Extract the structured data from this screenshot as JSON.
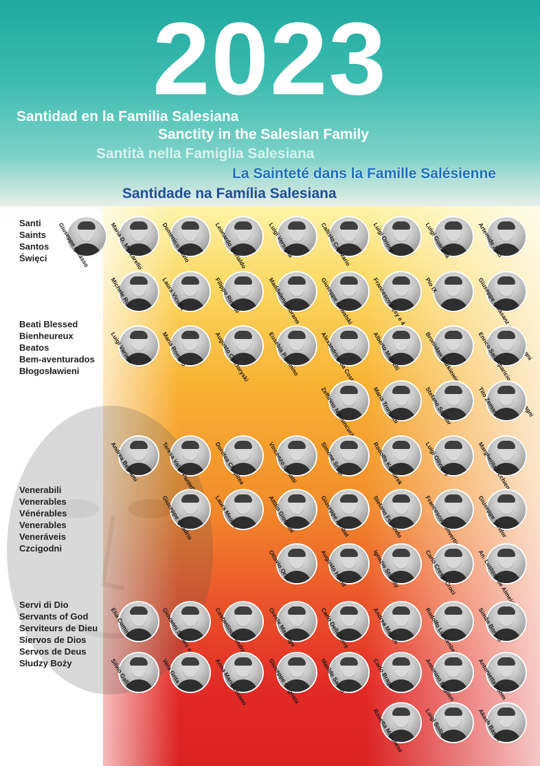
{
  "year": "2023",
  "titles": [
    "Santidad en la Familia Salesiana",
    "Sanctity in the Salesian Family",
    "Santità nella Famiglia Salesiana",
    "La Sainteté dans la Famille Salésienne",
    "Santidade na Família Salesiana"
  ],
  "sections": {
    "saints": [
      "Santi",
      "Saints",
      "Santos",
      "Święci"
    ],
    "blessed": [
      "Beati Blessed",
      "Bienheureux",
      "Beatos",
      "Bem-aventurados",
      "Błogosławieni"
    ],
    "venerable": [
      "Venerabili",
      "Venerables",
      "Vénérables",
      "Venerables",
      "Veneráveis",
      "Czcigodni"
    ],
    "servants": [
      "Servi di Dio",
      "Servants of God",
      "Serviteurs de Dieu",
      "Siervos de Dios",
      "Servos de Deus",
      "Słudzy Boży"
    ]
  },
  "people": [
    {
      "name": "Giuseppe Cafasso"
    },
    {
      "name": "Maria D. Mazzarello"
    },
    {
      "name": "Domenico Savio"
    },
    {
      "name": "Leonardo Murialdo"
    },
    {
      "name": "Luigi Versiglia"
    },
    {
      "name": "Callisto Caravario"
    },
    {
      "name": "Luigi Orione"
    },
    {
      "name": "Luigi Guanella"
    },
    {
      "name": "Artemide Zatti"
    },
    {
      "name": "Michele Rua"
    },
    {
      "name": "Laura Vicuña"
    },
    {
      "name": "Filippo Rinaldi"
    },
    {
      "name": "Maddalena Morano"
    },
    {
      "name": "Giuseppe Kowalski"
    },
    {
      "name": "Francesco Kęsy e 4 compagni"
    },
    {
      "name": "Pio IX"
    },
    {
      "name": "Giuseppe Calasanz e 31 compagni"
    },
    {
      "name": "Luigi Variara"
    },
    {
      "name": "Maria Romero"
    },
    {
      "name": "Augusto Czartoryski"
    },
    {
      "name": "Eusebia Palomino"
    },
    {
      "name": "Alexandrina da Costa"
    },
    {
      "name": "Alberto Marvelli"
    },
    {
      "name": "Bronisław Markiewicz"
    },
    {
      "name": "Enrico Saiz Aparicio e 62 compagni"
    },
    {
      "name": "Zeffirino Namuncurá"
    },
    {
      "name": "Maria Troncatti"
    },
    {
      "name": "Stefano Sándor"
    },
    {
      "name": "Tito Zeman"
    },
    {
      "name": "Andrea Beltrami"
    },
    {
      "name": "Teresa Valsè Pantellini"
    },
    {
      "name": "Dorotea Chopitea"
    },
    {
      "name": "Vincenzo Cimatti"
    },
    {
      "name": "Simone Srugi"
    },
    {
      "name": "Rodolfo Komorek"
    },
    {
      "name": "Luigi Olivares"
    },
    {
      "name": "Margherita Occhiena"
    },
    {
      "name": "Giuseppe Quadrio"
    },
    {
      "name": "Laura Meozzi"
    },
    {
      "name": "Attilio Giordani"
    },
    {
      "name": "Giuseppe Arribat"
    },
    {
      "name": "Stefano Ferrando"
    },
    {
      "name": "Francesco Convertini"
    },
    {
      "name": "Giuseppe Vandor"
    },
    {
      "name": "Ottavio Ortiz"
    },
    {
      "name": "Augusto Hlond"
    },
    {
      "name": "Ignazio Stuchly"
    },
    {
      "name": "Carlo Crespi Croci"
    },
    {
      "name": "An. Lustosa de Almeida"
    },
    {
      "name": "Elia Comini"
    },
    {
      "name": "Giovanni Świerc e 8 compagni"
    },
    {
      "name": "Costantino Vendrame"
    },
    {
      "name": "Oreste Marengo"
    },
    {
      "name": "Carlo Della Torre"
    },
    {
      "name": "Andrea Majcen"
    },
    {
      "name": "Rodolfo Lunkenbein"
    },
    {
      "name": "Simão Bororo"
    },
    {
      "name": "Silvio Galli"
    },
    {
      "name": "Vera Grita"
    },
    {
      "name": "Anna Maria Lozano"
    },
    {
      "name": "Giuseppe Cognata"
    },
    {
      "name": "Matilde Salem"
    },
    {
      "name": "Carlo Braga"
    },
    {
      "name": "Antonino Baglieri"
    },
    {
      "name": "Antonietta Böhm"
    },
    {
      "name": "Rosetta Marchese"
    },
    {
      "name": "Luigi Bolla"
    },
    {
      "name": "Akash Bashir"
    }
  ]
}
